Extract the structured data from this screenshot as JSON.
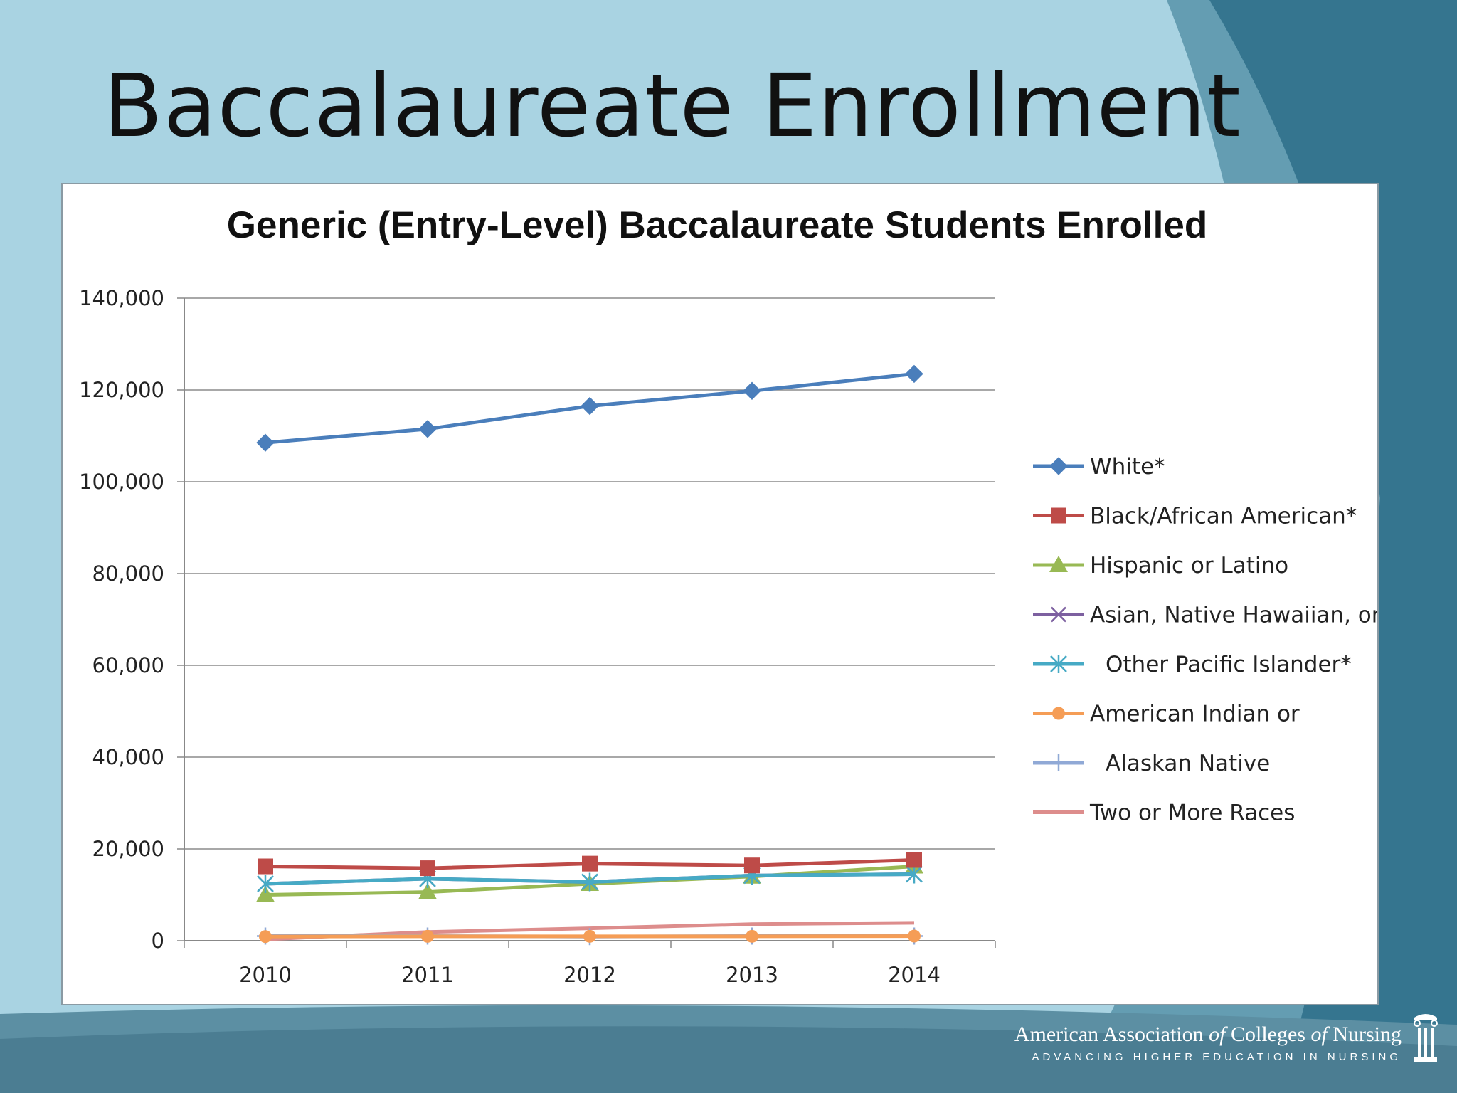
{
  "slide": {
    "title": "Baccalaureate Enrollment",
    "colors": {
      "background": "#a9d3e2",
      "accent_dark": "#2d6f88",
      "accent_mid": "#4e8ba1"
    }
  },
  "logo": {
    "name_part1": "American Association",
    "of1": "of",
    "name_part2": "Colleges",
    "of2": "of",
    "name_part3": "Nursing",
    "tagline": "ADVANCING HIGHER EDUCATION IN NURSING",
    "icon": "column-icon"
  },
  "chart_data": {
    "type": "line",
    "title": "Generic (Entry-Level) Baccalaureate Students Enrolled",
    "categories": [
      "2010",
      "2011",
      "2012",
      "2013",
      "2014"
    ],
    "ylim": [
      0,
      140000
    ],
    "yticks": [
      0,
      20000,
      40000,
      60000,
      80000,
      100000,
      120000,
      140000
    ],
    "ytick_labels": [
      "0",
      "20,000",
      "40,000",
      "60,000",
      "80,000",
      "100,000",
      "120,000",
      "140,000"
    ],
    "grid": true,
    "legend_position": "right",
    "series": [
      {
        "name": "White*",
        "color": "#4a7ebb",
        "marker": "diamond",
        "values": [
          108500,
          111500,
          116500,
          119800,
          123500
        ]
      },
      {
        "name": "Black/African American*",
        "color": "#be4b48",
        "marker": "square",
        "values": [
          16200,
          15800,
          16800,
          16400,
          17600
        ]
      },
      {
        "name": "Hispanic or Latino",
        "color": "#98b954",
        "marker": "triangle",
        "values": [
          10000,
          10600,
          12400,
          14000,
          16200
        ]
      },
      {
        "name": "Asian, Native Hawaiian, or",
        "color": "#7d60a0",
        "marker": "x",
        "values": [
          12400,
          13500,
          12800,
          14200,
          14500
        ]
      },
      {
        "name": "Other Pacific Islander*",
        "color": "#46aac5",
        "marker": "star",
        "values": [
          12400,
          13500,
          12800,
          14200,
          14500
        ]
      },
      {
        "name": "American Indian or",
        "color": "#f59d56",
        "marker": "circle",
        "values": [
          900,
          950,
          950,
          950,
          1000
        ]
      },
      {
        "name": "Alaskan Native",
        "color": "#90a9d6",
        "marker": "plus",
        "values": [
          1000,
          1000,
          900,
          1000,
          1000
        ]
      },
      {
        "name": "Two or More Races",
        "color": "#dd8d8c",
        "marker": "none",
        "values": [
          300,
          1900,
          2700,
          3600,
          3900
        ]
      }
    ]
  }
}
